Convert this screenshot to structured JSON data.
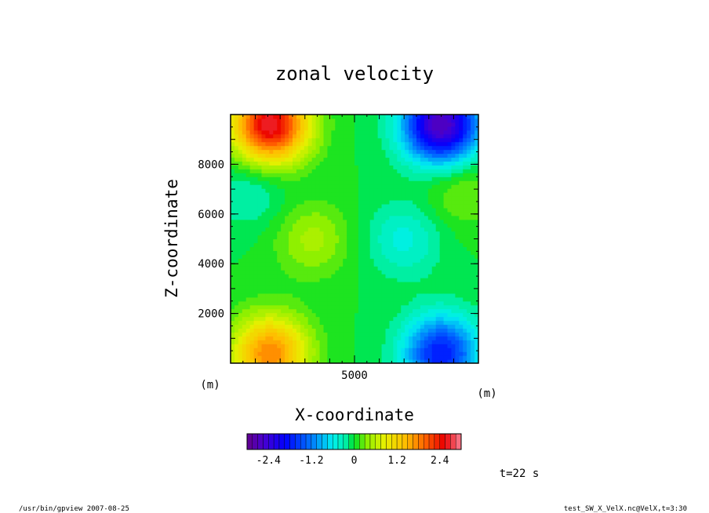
{
  "chart_data": {
    "type": "heatmap",
    "title": "zonal velocity",
    "xlabel": "X-coordinate",
    "ylabel": "Z-coordinate",
    "x_unit": "(m)",
    "y_unit": "(m)",
    "x_ticks": [
      "5000"
    ],
    "y_ticks": [
      "2000",
      "4000",
      "6000",
      "8000"
    ],
    "xlim": [
      0,
      10000
    ],
    "ylim": [
      0,
      10000
    ],
    "x_tick_values": [
      5000
    ],
    "y_tick_values": [
      2000,
      4000,
      6000,
      8000
    ],
    "colorbar": {
      "labels": [
        "-2.4",
        "-1.2",
        "0",
        "1.2",
        "2.4"
      ],
      "label_values": [
        -2.4,
        -1.2,
        0,
        1.2,
        2.4
      ],
      "range": [
        -3.0,
        3.0
      ],
      "n_levels": 40
    },
    "features": [
      {
        "x": 1600,
        "z": 9600,
        "value": 2.7
      },
      {
        "x": 8500,
        "z": 9600,
        "value": -2.7
      },
      {
        "x": 1600,
        "z": 400,
        "value": 1.8
      },
      {
        "x": 8500,
        "z": 400,
        "value": -1.8
      },
      {
        "x": 3300,
        "z": 5000,
        "value": 0.5
      },
      {
        "x": 7000,
        "z": 5000,
        "value": -0.5
      },
      {
        "x": 800,
        "z": 7000,
        "value": -0.35
      },
      {
        "x": 9300,
        "z": 7000,
        "value": 0.35
      }
    ],
    "time_label": "t=22 s"
  },
  "footer": {
    "left": "/usr/bin/gpview  2007-08-25",
    "right": "test_SW_X_VelX.nc@VelX,t=3:30"
  }
}
